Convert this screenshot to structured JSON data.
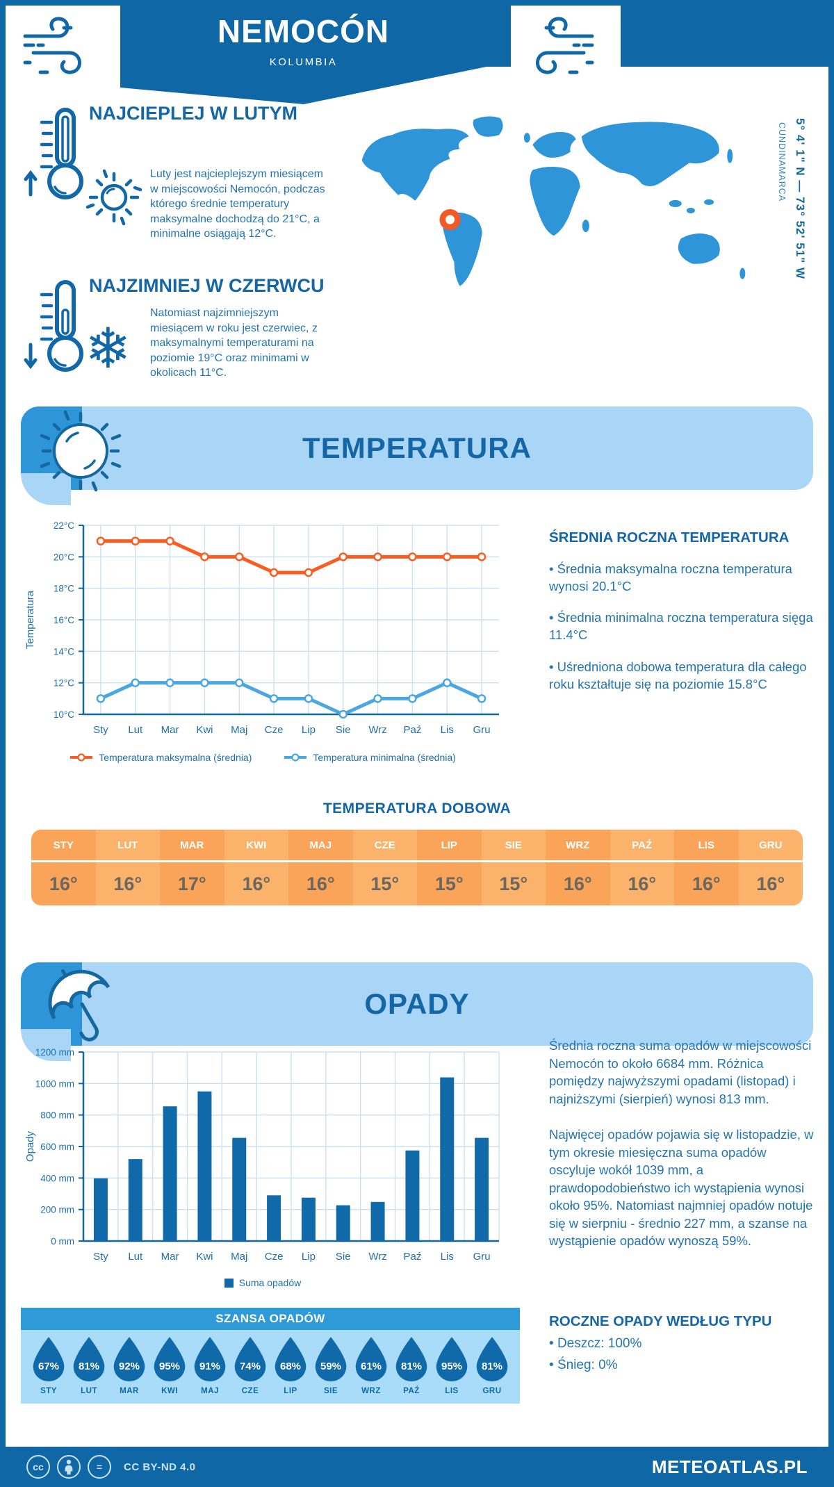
{
  "header": {
    "title": "NEMOCÓN",
    "subtitle": "KOLUMBIA"
  },
  "location": {
    "coordinates": "5° 4' 1\" N — 73° 52' 51\" W",
    "region": "CUNDINAMARCA"
  },
  "highlights": [
    {
      "title": "NAJCIEPLEJ W LUTYM",
      "text": "Luty jest najcieplejszym miesiącem w miejscowości Nemocón, podczas którego średnie temperatury maksymalne dochodzą do 21°C, a minimalne osiągają 12°C."
    },
    {
      "title": "NAJZIMNIEJ W CZERWCU",
      "text": "Natomiast najzimniejszym miesiącem w roku jest czerwiec, z maksymalnymi temperaturami na poziomie 19°C oraz minimami w okolicach 11°C."
    }
  ],
  "temperature_section": {
    "banner_title": "TEMPERATURA",
    "summary_title": "ŚREDNIA ROCZNA TEMPERATURA",
    "summary_bullets": [
      "Średnia maksymalna roczna temperatura wynosi 20.1°C",
      "Średnia minimalna roczna temperatura sięga 11.4°C",
      "Uśredniona dobowa temperatura dla całego roku kształtuje się na poziomie 15.8°C"
    ],
    "daily_title": "TEMPERATURA DOBOWA",
    "daily": {
      "months": [
        "STY",
        "LUT",
        "MAR",
        "KWI",
        "MAJ",
        "CZE",
        "LIP",
        "SIE",
        "WRZ",
        "PAŹ",
        "LIS",
        "GRU"
      ],
      "values": [
        "16°",
        "16°",
        "17°",
        "16°",
        "16°",
        "15°",
        "15°",
        "15°",
        "16°",
        "16°",
        "16°",
        "16°"
      ]
    }
  },
  "precipitation_section": {
    "banner_title": "OPADY",
    "paragraphs": [
      "Średnia roczna suma opadów w miejscowości Nemocón to około 6684 mm. Różnica pomiędzy najwyższymi opadami (listopad) i najniższymi (sierpień) wynosi 813 mm.",
      "Najwięcej opadów pojawia się w listopadzie, w tym okresie miesięczna suma opadów oscyluje wokół 1039 mm, a prawdopodobieństwo ich wystąpienia wynosi około 95%. Natomiast najmniej opadów notuje się w sierpniu - średnio 227 mm, a szanse na wystąpienie opadów wynoszą 59%."
    ],
    "type_title": "ROCZNE OPADY WEDŁUG TYPU",
    "type_bullets": [
      "Deszcz: 100%",
      "Śnieg: 0%"
    ],
    "chance": {
      "title": "SZANSA OPADÓW",
      "months": [
        "STY",
        "LUT",
        "MAR",
        "KWI",
        "MAJ",
        "CZE",
        "LIP",
        "SIE",
        "WRZ",
        "PAŹ",
        "LIS",
        "GRU"
      ],
      "values": [
        "67%",
        "81%",
        "92%",
        "95%",
        "91%",
        "74%",
        "68%",
        "59%",
        "61%",
        "81%",
        "95%",
        "81%"
      ]
    }
  },
  "chart_data": [
    {
      "type": "line",
      "categories": [
        "Sty",
        "Lut",
        "Mar",
        "Kwi",
        "Maj",
        "Cze",
        "Lip",
        "Sie",
        "Wrz",
        "Paź",
        "Lis",
        "Gru"
      ],
      "series": [
        {
          "name": "Temperatura maksymalna (średnia)",
          "color": "#F95D22",
          "values": [
            21,
            21,
            21,
            20,
            20,
            19,
            19,
            20,
            20,
            20,
            20,
            20
          ]
        },
        {
          "name": "Temperatura minimalna (średnia)",
          "color": "#4BA7E2",
          "values": [
            11,
            12,
            12,
            12,
            12,
            11,
            11,
            10,
            11,
            11,
            12,
            11
          ]
        }
      ],
      "ylabel": "Temperatura",
      "ylim": [
        10,
        22
      ],
      "ytick_step": 2,
      "ytick_suffix": "°C",
      "grid": true,
      "legend_position": "bottom"
    },
    {
      "type": "bar",
      "categories": [
        "Sty",
        "Lut",
        "Mar",
        "Kwi",
        "Maj",
        "Cze",
        "Lip",
        "Sie",
        "Wrz",
        "Paź",
        "Lis",
        "Gru"
      ],
      "series": [
        {
          "name": "Suma opadów",
          "color": "#1069A8",
          "values": [
            398,
            520,
            855,
            950,
            655,
            290,
            275,
            227,
            248,
            575,
            1039,
            655
          ]
        }
      ],
      "ylabel": "Opady",
      "ylim": [
        0,
        1200
      ],
      "ytick_step": 200,
      "ytick_suffix": " mm",
      "grid": true,
      "legend_position": "bottom"
    }
  ],
  "icons": {
    "snowflake": "❄"
  },
  "footer": {
    "license": "CC BY-ND 4.0",
    "badges": [
      "cc",
      "person",
      "="
    ],
    "brand": "METEOATLAS.PL"
  },
  "colors": {
    "primary": "#0F67A5",
    "banner_light": "#A9D6F7",
    "banner_accent": "#2E95D8",
    "chance_header": "#2E9AD8",
    "chance_bg": "#A9DCF8",
    "max_line": "#F95D22",
    "min_line": "#4BA7E2",
    "bar": "#1069A8",
    "table_orange_a": "#F9A458",
    "table_orange_b": "#FBB26B",
    "marker_orange": "#F15A24",
    "map_blue": "#2D95D8"
  }
}
